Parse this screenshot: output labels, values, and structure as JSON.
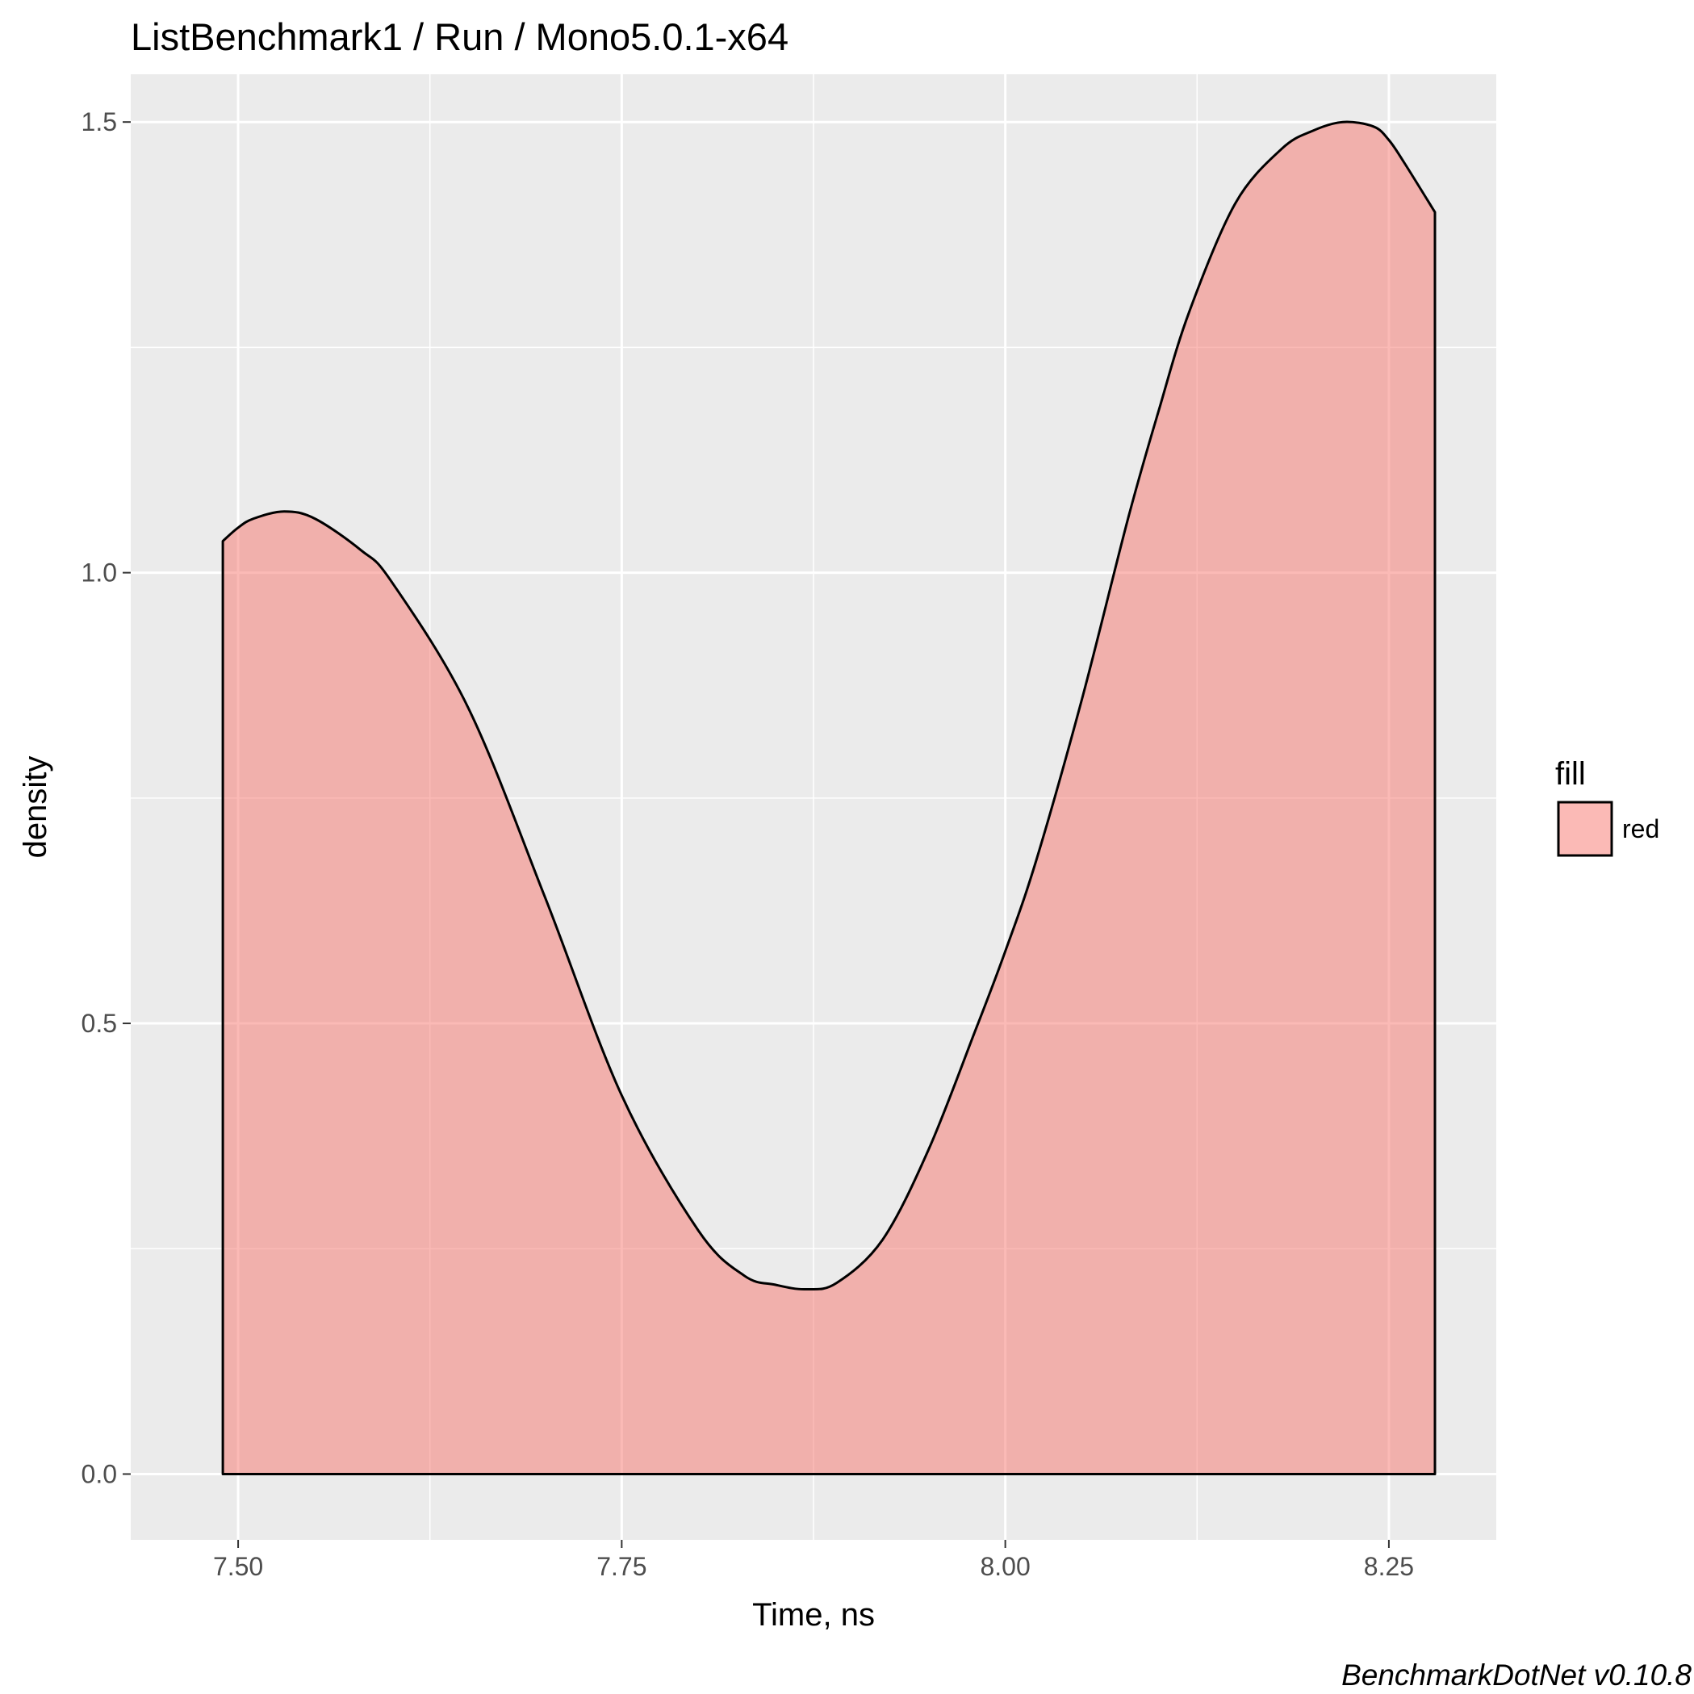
{
  "chart_data": {
    "type": "area",
    "title": "ListBenchmark1 / Run / Mono5.0.1-x64",
    "xlabel": "Time, ns",
    "ylabel": "density",
    "caption": "BenchmarkDotNet v0.10.8",
    "xlim": [
      7.43,
      8.32
    ],
    "ylim": [
      -0.073,
      1.553
    ],
    "x_ticks": [
      7.5,
      7.75,
      8.0,
      8.25
    ],
    "x_tick_labels": [
      "7.50",
      "7.75",
      "8.00",
      "8.25"
    ],
    "y_ticks": [
      0.0,
      0.5,
      1.0,
      1.5
    ],
    "y_tick_labels": [
      "0.0",
      "0.5",
      "1.0",
      "1.5"
    ],
    "grid": true,
    "legend": {
      "title": "fill",
      "placement": "right",
      "entries": [
        {
          "label": "red",
          "color": "#F8766D"
        }
      ]
    },
    "series": [
      {
        "name": "red",
        "fill": "#F8766D",
        "fill_opacity": 0.5,
        "stroke": "#000000",
        "x": [
          7.49,
          7.5,
          7.51,
          7.53,
          7.55,
          7.58,
          7.6,
          7.65,
          7.7,
          7.75,
          7.8,
          7.83,
          7.85,
          7.87,
          7.89,
          7.92,
          7.95,
          7.98,
          8.0,
          8.02,
          8.05,
          8.08,
          8.1,
          8.12,
          8.15,
          8.18,
          8.2,
          8.22,
          8.24,
          8.25,
          8.26,
          8.28
        ],
        "y": [
          1.035,
          1.05,
          1.06,
          1.068,
          1.06,
          1.025,
          0.99,
          0.85,
          0.64,
          0.42,
          0.27,
          0.22,
          0.21,
          0.205,
          0.212,
          0.26,
          0.36,
          0.49,
          0.58,
          0.68,
          0.86,
          1.06,
          1.18,
          1.29,
          1.41,
          1.47,
          1.49,
          1.5,
          1.495,
          1.48,
          1.455,
          1.4
        ]
      }
    ],
    "colors": {
      "panel_background": "#EBEBEB",
      "grid_major": "#FFFFFF",
      "area_fill": "#F8766D",
      "outline": "#000000"
    }
  }
}
